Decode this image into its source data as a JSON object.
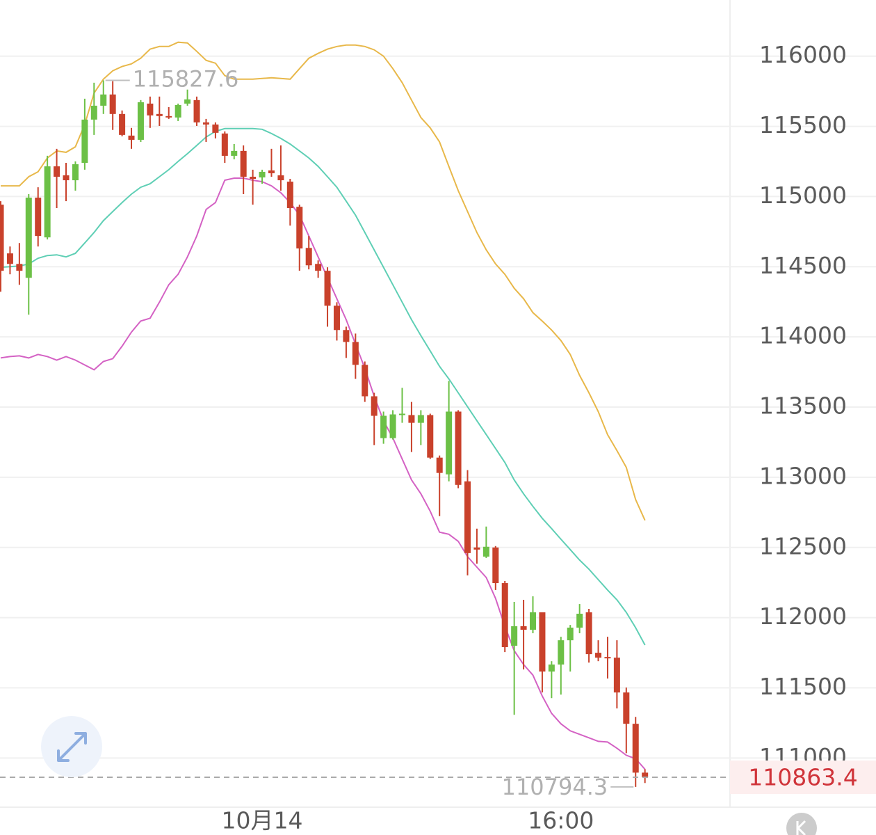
{
  "chart_data": {
    "type": "candlestick",
    "categories": [
      null,
      null,
      null,
      null,
      null,
      null,
      null,
      null,
      null,
      null,
      null,
      null,
      null,
      null,
      null,
      null,
      null,
      null,
      null,
      null,
      null,
      null,
      null,
      null,
      null,
      null,
      null,
      null,
      "10月14",
      null,
      null,
      null,
      null,
      null,
      null,
      null,
      null,
      null,
      null,
      null,
      null,
      null,
      null,
      null,
      null,
      null,
      null,
      null,
      null,
      null,
      null,
      null,
      null,
      null,
      null,
      null,
      null,
      null,
      null,
      null,
      "16:00",
      null,
      null,
      null,
      null,
      null,
      null,
      null,
      null,
      null
    ],
    "candles": {
      "open": [
        114942,
        114595,
        114520,
        114421,
        114992,
        114709,
        115215,
        115151,
        115116,
        115240,
        115548,
        115647,
        115727,
        115588,
        115434,
        115404,
        115662,
        115588,
        115573,
        115563,
        115662,
        115687,
        115528,
        115513,
        115449,
        115290,
        115325,
        115141,
        115136,
        115186,
        115151,
        115106,
        114927,
        114634,
        114520,
        114471,
        114222,
        114049,
        113964,
        113801,
        113577,
        113279,
        113279,
        113443,
        113443,
        113388,
        113443,
        113140,
        113021,
        113468,
        112971,
        112500,
        112435,
        112500,
        112246,
        111800,
        111939,
        111914,
        112038,
        111616,
        111666,
        111839,
        111929,
        112038,
        111750,
        111720,
        111715,
        111467,
        111244,
        110896
      ],
      "high": [
        114967,
        114644,
        114669,
        115017,
        115066,
        115290,
        115340,
        115240,
        115250,
        115697,
        115811,
        115827.6,
        115821,
        115613,
        115489,
        115687,
        115712,
        115712,
        115637,
        115662,
        115762,
        115712,
        115553,
        115528,
        115464,
        115374,
        115364,
        115191,
        115191,
        115340,
        115364,
        115126,
        114942,
        114719,
        114545,
        114496,
        114247,
        114073,
        114024,
        113825,
        113602,
        113468,
        113478,
        113637,
        113537,
        113478,
        113453,
        113155,
        113686,
        113478,
        113051,
        112634,
        112649,
        112510,
        112261,
        112112,
        112127,
        112152,
        112038,
        111690,
        111864,
        111948,
        112097,
        112063,
        111839,
        111864,
        111839,
        111502,
        111293,
        110921
      ],
      "low": [
        114322,
        114446,
        114371,
        114158,
        114644,
        114694,
        114918,
        114967,
        115042,
        115191,
        115439,
        115588,
        115474,
        115429,
        115340,
        115389,
        115489,
        115503,
        115553,
        115538,
        115647,
        115503,
        115389,
        115414,
        115240,
        115265,
        115017,
        114942,
        115091,
        115141,
        115042,
        114793,
        114471,
        114481,
        114421,
        114073,
        113974,
        113850,
        113701,
        113537,
        113229,
        113239,
        113269,
        113388,
        113180,
        113229,
        113130,
        112723,
        112971,
        112922,
        112301,
        112385,
        112425,
        112197,
        111755,
        111308,
        111631,
        111889,
        111467,
        111427,
        111452,
        111616,
        111889,
        111680,
        111690,
        111566,
        111353,
        111035,
        110794.3,
        110822
      ],
      "close": [
        114471,
        114520,
        114471,
        114992,
        114719,
        115215,
        115141,
        115116,
        115230,
        115548,
        115647,
        115727,
        115588,
        115439,
        115404,
        115672,
        115578,
        115573,
        115563,
        115652,
        115692,
        115528,
        115513,
        115454,
        115290,
        115325,
        115141,
        115126,
        115176,
        115166,
        115116,
        114918,
        114630,
        114510,
        114471,
        114222,
        114049,
        113964,
        113801,
        113577,
        113438,
        113438,
        113448,
        113453,
        113388,
        113443,
        113140,
        113031,
        113468,
        112946,
        112460,
        112485,
        112505,
        112246,
        111790,
        111939,
        111914,
        112038,
        111616,
        111666,
        111839,
        111929,
        112028,
        111740,
        111715,
        111710,
        111467,
        111244,
        110896,
        110863.4
      ],
      "up_color": "#6cc046",
      "down_color": "#c9412b"
    },
    "bands": [
      {
        "color": "#e8b84a",
        "values": [
          115076,
          115076,
          115076,
          115141,
          115176,
          115275,
          115325,
          115315,
          115354,
          115513,
          115737,
          115836,
          115896,
          115926,
          115945,
          115985,
          116050,
          116069,
          116069,
          116099,
          116094,
          116034,
          115970,
          115950,
          115861,
          115836,
          115836,
          115836,
          115841,
          115846,
          115841,
          115836,
          115911,
          115985,
          116020,
          116050,
          116069,
          116079,
          116079,
          116069,
          116045,
          116000,
          115911,
          115811,
          115687,
          115563,
          115489,
          115389,
          115215,
          115042,
          114893,
          114744,
          114620,
          114520,
          114446,
          114347,
          114272,
          114173,
          114113,
          114049,
          113974,
          113875,
          113726,
          113602,
          113468,
          113304,
          113190,
          113071,
          112842,
          112693
        ]
      },
      {
        "color": "#5fcfb5",
        "values": [
          114496,
          114500,
          114505,
          114520,
          114560,
          114580,
          114585,
          114570,
          114595,
          114669,
          114744,
          114828,
          114893,
          114957,
          115017,
          115066,
          115091,
          115141,
          115191,
          115250,
          115305,
          115364,
          115424,
          115464,
          115484,
          115484,
          115484,
          115484,
          115479,
          115449,
          115414,
          115374,
          115325,
          115275,
          115215,
          115141,
          115066,
          114967,
          114868,
          114744,
          114620,
          114496,
          114371,
          114247,
          114123,
          114009,
          113900,
          113790,
          113701,
          113602,
          113502,
          113403,
          113304,
          113205,
          113105,
          112981,
          112882,
          112793,
          112708,
          112634,
          112559,
          112485,
          112410,
          112346,
          112271,
          112197,
          112127,
          112038,
          111929,
          111805
        ]
      },
      {
        "color": "#d462c4",
        "values": [
          113850,
          113860,
          113865,
          113850,
          113875,
          113860,
          113835,
          113860,
          113835,
          113800,
          113766,
          113825,
          113845,
          113934,
          114034,
          114113,
          114133,
          114247,
          114371,
          114446,
          114570,
          114719,
          114908,
          114957,
          115116,
          115131,
          115131,
          115116,
          115106,
          115076,
          115027,
          114957,
          114868,
          114719,
          114570,
          114421,
          114272,
          114123,
          113950,
          113776,
          113577,
          113403,
          113279,
          113130,
          112981,
          112882,
          112758,
          112609,
          112594,
          112544,
          112435,
          112360,
          112286,
          112137,
          111939,
          111765,
          111666,
          111591,
          111442,
          111318,
          111244,
          111194,
          111169,
          111144,
          111119,
          111114,
          111070,
          111020,
          110995,
          110920
        ]
      }
    ],
    "ylim": [
      110650,
      116400
    ],
    "yticks": [
      111000,
      111500,
      112000,
      112500,
      113000,
      113500,
      114000,
      114500,
      115000,
      115500,
      116000
    ],
    "grid": true
  }
}
